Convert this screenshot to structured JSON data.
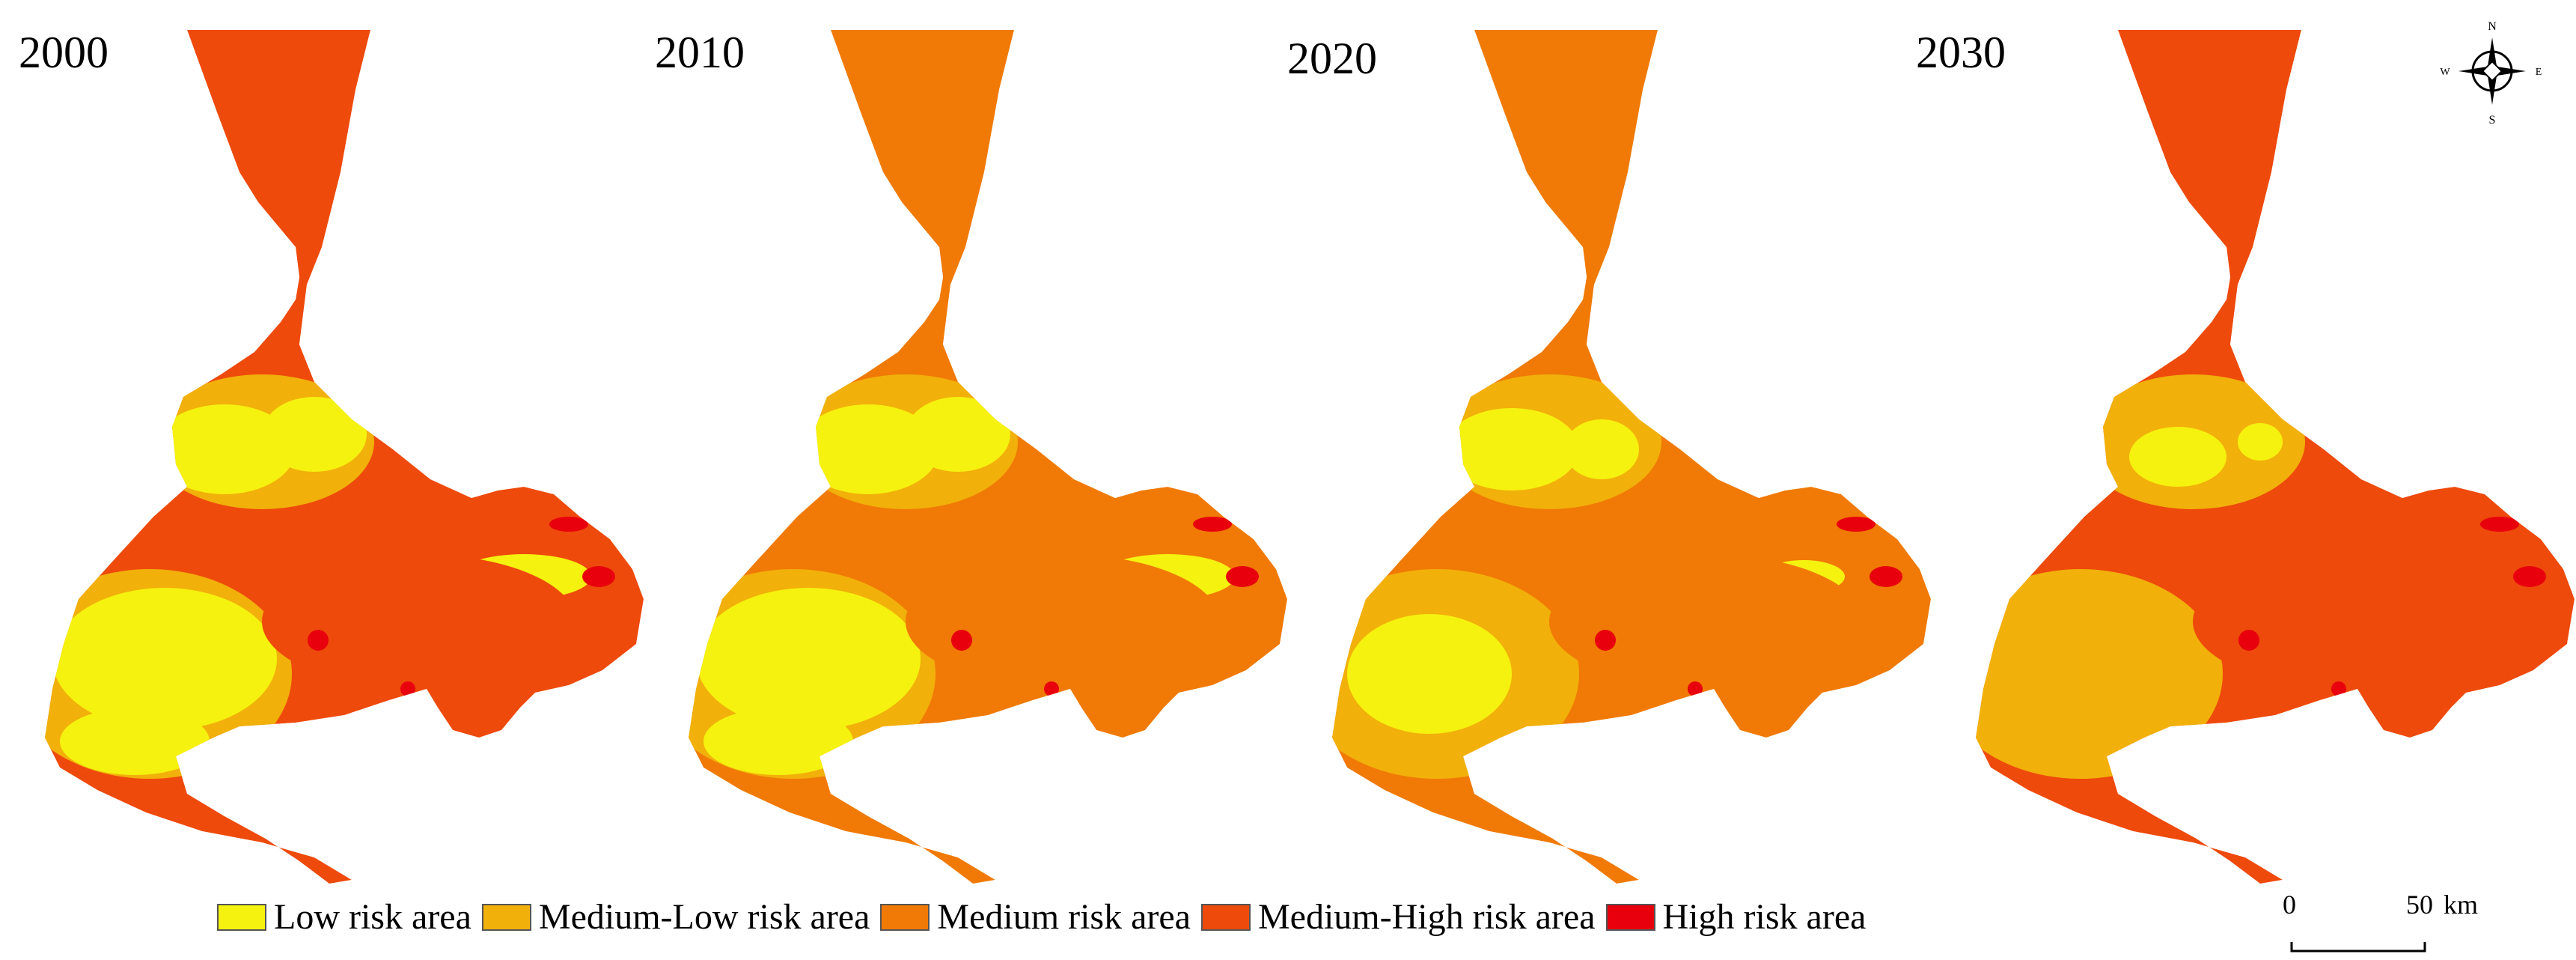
{
  "colors": {
    "low": "#F5F20F",
    "medium_low": "#F2B00A",
    "medium": "#F07A05",
    "medium_high": "#EE4A0C",
    "high": "#E8000D"
  },
  "panels": [
    {
      "year": "2000",
      "base": "medium_high",
      "yellow_extent": "large"
    },
    {
      "year": "2010",
      "base": "medium",
      "yellow_extent": "large"
    },
    {
      "year": "2020",
      "base": "medium",
      "yellow_extent": "medium"
    },
    {
      "year": "2030",
      "base": "medium_high",
      "yellow_extent": "small"
    }
  ],
  "compass": {
    "n": "N",
    "s": "S",
    "e": "E",
    "w": "W"
  },
  "legend": [
    {
      "key": "low",
      "label": "Low risk area"
    },
    {
      "key": "medium_low",
      "label": "Medium-Low risk area"
    },
    {
      "key": "medium",
      "label": "Medium risk area"
    },
    {
      "key": "medium_high",
      "label": "Medium-High risk area"
    },
    {
      "key": "high",
      "label": "High risk area"
    }
  ],
  "scale": {
    "start": "0",
    "end": "50",
    "unit": "km"
  }
}
